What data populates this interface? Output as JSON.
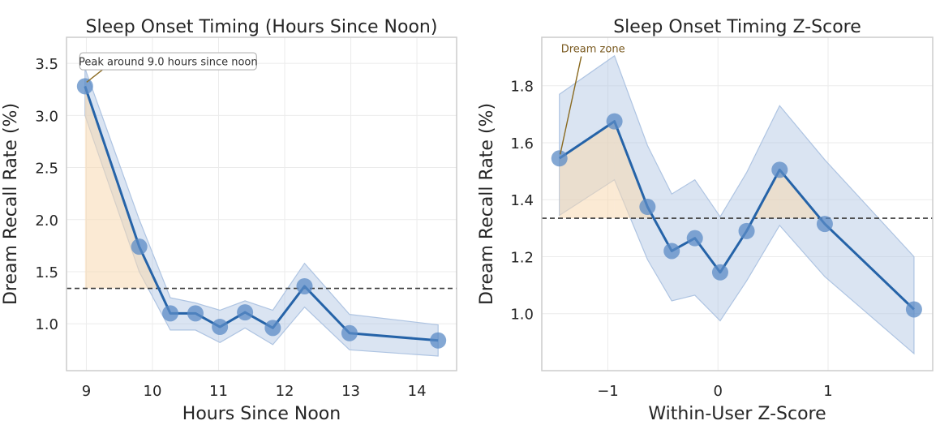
{
  "chart_data": [
    {
      "type": "line",
      "title": "Sleep Onset Timing (Hours Since Noon)",
      "xlabel": "Hours Since Noon",
      "ylabel": "Dream Recall Rate (%)",
      "xlim": [
        8.7,
        14.6
      ],
      "ylim": [
        0.55,
        3.75
      ],
      "xticks": [
        9,
        10,
        11,
        12,
        13,
        14
      ],
      "xtick_labels": [
        "9",
        "10",
        "11",
        "12",
        "13",
        "14"
      ],
      "yticks": [
        1.0,
        1.5,
        2.0,
        2.5,
        3.0,
        3.5
      ],
      "ytick_labels": [
        "1.0",
        "1.5",
        "2.0",
        "2.5",
        "3.0",
        "3.5"
      ],
      "grid": true,
      "reference_line": 1.34,
      "series": [
        {
          "x": [
            8.98,
            9.8,
            10.27,
            10.65,
            11.02,
            11.4,
            11.82,
            12.3,
            12.98,
            14.32
          ],
          "y": [
            3.28,
            1.74,
            1.1,
            1.1,
            0.97,
            1.11,
            0.96,
            1.36,
            0.91,
            0.84
          ],
          "ci_upper": [
            3.45,
            2.0,
            1.25,
            1.2,
            1.13,
            1.22,
            1.13,
            1.58,
            1.09,
            0.99
          ],
          "ci_lower": [
            3.0,
            1.5,
            0.94,
            0.94,
            0.82,
            0.96,
            0.8,
            1.16,
            0.75,
            0.69
          ]
        }
      ],
      "annotation": {
        "text": "Peak around 9.0 hours since noon",
        "x": 8.98,
        "y": 3.28,
        "text_x": 8.9,
        "text_y": 3.52
      },
      "colors": {
        "line": "#2563a8",
        "marker": "#5b8bc6",
        "band": "#aec4e2",
        "above_fill": "#f8d8b0",
        "reference": "#3a3a3a",
        "annotation": "#333333"
      }
    },
    {
      "type": "line",
      "title": "Sleep Onset Timing Z-Score",
      "xlabel": "Within-User Z-Score",
      "ylabel": "Dream Recall Rate (%)",
      "xlim": [
        -1.6,
        1.95
      ],
      "ylim": [
        0.8,
        1.97
      ],
      "xticks": [
        -1,
        0,
        1
      ],
      "xtick_labels": [
        "−1",
        "0",
        "1"
      ],
      "yticks": [
        1.0,
        1.2,
        1.4,
        1.6,
        1.8
      ],
      "ytick_labels": [
        "1.0",
        "1.2",
        "1.4",
        "1.6",
        "1.8"
      ],
      "grid": true,
      "reference_line": 1.335,
      "series": [
        {
          "x": [
            -1.44,
            -0.94,
            -0.64,
            -0.42,
            -0.21,
            0.02,
            0.26,
            0.56,
            0.97,
            1.78
          ],
          "y": [
            1.545,
            1.675,
            1.375,
            1.22,
            1.265,
            1.145,
            1.29,
            1.505,
            1.315,
            1.015
          ],
          "ci_upper": [
            1.77,
            1.905,
            1.59,
            1.42,
            1.47,
            1.34,
            1.495,
            1.73,
            1.54,
            1.2
          ],
          "ci_lower": [
            1.345,
            1.47,
            1.19,
            1.045,
            1.065,
            0.975,
            1.115,
            1.31,
            1.13,
            0.86
          ]
        }
      ],
      "annotation": {
        "text": "Dream zone",
        "x": -1.44,
        "y": 1.545,
        "text_x": -1.44,
        "text_y": 1.92
      },
      "colors": {
        "line": "#2563a8",
        "marker": "#5b8bc6",
        "band": "#aec4e2",
        "above_fill": "#f8d8b0",
        "reference": "#3a3a3a",
        "annotation": "#7a5a20"
      }
    }
  ]
}
